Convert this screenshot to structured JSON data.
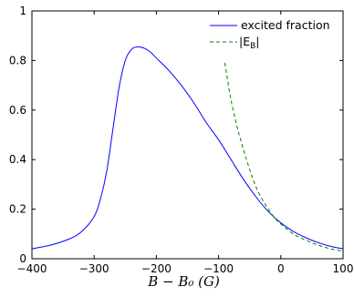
{
  "chart_data": {
    "type": "line",
    "xlabel": "B − B₀ (G)",
    "ylabel": "",
    "xlim": [
      -400,
      100
    ],
    "ylim": [
      0,
      1
    ],
    "x_ticks": [
      "-400",
      "-300",
      "-200",
      "-100",
      "0",
      "100"
    ],
    "y_ticks": [
      "0",
      "0.2",
      "0.4",
      "0.6",
      "0.8",
      "1"
    ],
    "grid": false,
    "legend_position": "top-right",
    "series": [
      {
        "name": "excited fraction",
        "color": "#0000ff",
        "style": "solid",
        "x": [
          -400,
          -370,
          -340,
          -320,
          -300,
          -290,
          -280,
          -270,
          -260,
          -250,
          -240,
          -230,
          -220,
          -210,
          -200,
          -180,
          -160,
          -140,
          -120,
          -100,
          -80,
          -60,
          -40,
          -20,
          0,
          20,
          40,
          60,
          80,
          100
        ],
        "y": [
          0.04,
          0.055,
          0.08,
          0.11,
          0.17,
          0.24,
          0.35,
          0.52,
          0.69,
          0.8,
          0.845,
          0.855,
          0.85,
          0.835,
          0.81,
          0.76,
          0.7,
          0.63,
          0.55,
          0.48,
          0.4,
          0.32,
          0.25,
          0.19,
          0.145,
          0.11,
          0.085,
          0.065,
          0.05,
          0.04
        ]
      },
      {
        "name": "|E_B|",
        "color": "#008000",
        "style": "dashed",
        "x": [
          -90,
          -80,
          -70,
          -60,
          -50,
          -40,
          -30,
          -20,
          -10,
          0,
          20,
          40,
          60,
          80,
          100
        ],
        "y": [
          0.79,
          0.64,
          0.53,
          0.44,
          0.36,
          0.29,
          0.24,
          0.2,
          0.165,
          0.14,
          0.1,
          0.075,
          0.055,
          0.04,
          0.03
        ]
      }
    ]
  },
  "legend": {
    "items": [
      {
        "label": "excited fraction"
      },
      {
        "label": "|E"
      },
      {
        "sub": "B"
      },
      {
        "after": "|"
      }
    ]
  }
}
